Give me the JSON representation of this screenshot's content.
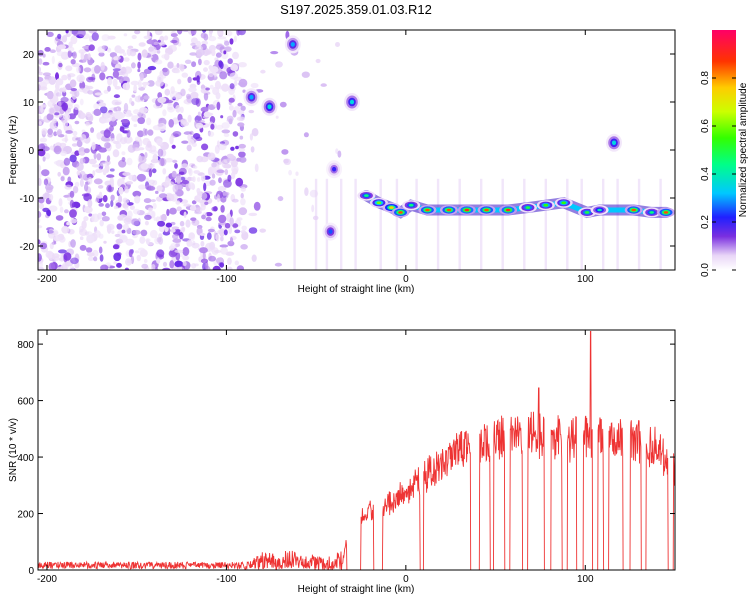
{
  "page_title": "S197.2025.359.01.03.R12",
  "chart_data": [
    {
      "type": "heatmap",
      "title": "S197.2025.359.01.03.R12",
      "xlabel": "Height of straight line (km)",
      "ylabel": "Frequency (Hz)",
      "xlim": [
        -205,
        150
      ],
      "ylim": [
        -25,
        25
      ],
      "x_ticks": [
        -200,
        -100,
        0,
        100
      ],
      "y_ticks": [
        -20,
        -10,
        0,
        10,
        20
      ],
      "colorbar": {
        "label": "Normalized spectral amplitude",
        "range": [
          0,
          1
        ],
        "ticks": [
          "0.0",
          "0.2",
          "0.4",
          "0.6",
          "0.8"
        ],
        "tick_values": [
          0,
          0.2,
          0.4,
          0.6,
          0.8
        ]
      },
      "features": {
        "noise_region": {
          "x": [
            -205,
            -90
          ],
          "y": [
            -25,
            25
          ]
        },
        "carrier_track": [
          {
            "x": -22,
            "y": -9.5,
            "a": 0.45
          },
          {
            "x": -15,
            "y": -11,
            "a": 0.6
          },
          {
            "x": -8,
            "y": -12,
            "a": 0.75
          },
          {
            "x": -3,
            "y": -13,
            "a": 0.85
          },
          {
            "x": 3,
            "y": -11.5,
            "a": 0.45
          },
          {
            "x": 12,
            "y": -12.5,
            "a": 0.85
          },
          {
            "x": 24,
            "y": -12.5,
            "a": 0.85
          },
          {
            "x": 34,
            "y": -12.5,
            "a": 0.9
          },
          {
            "x": 45,
            "y": -12.5,
            "a": 0.85
          },
          {
            "x": 57,
            "y": -12.5,
            "a": 0.9
          },
          {
            "x": 68,
            "y": -12,
            "a": 0.5
          },
          {
            "x": 78,
            "y": -11.5,
            "a": 0.55
          },
          {
            "x": 88,
            "y": -11,
            "a": 0.55
          },
          {
            "x": 101,
            "y": -13,
            "a": 0.5
          },
          {
            "x": 108,
            "y": -12.5,
            "a": 0.4
          },
          {
            "x": 127,
            "y": -12.5,
            "a": 0.85
          },
          {
            "x": 137,
            "y": -13,
            "a": 0.45
          },
          {
            "x": 145,
            "y": -13,
            "a": 0.85
          }
        ],
        "blobs": [
          {
            "x": -86,
            "y": 11,
            "a": 0.3
          },
          {
            "x": -76,
            "y": 9,
            "a": 0.35
          },
          {
            "x": -63,
            "y": 22,
            "a": 0.3
          },
          {
            "x": -30,
            "y": 10,
            "a": 0.35
          },
          {
            "x": -42,
            "y": -17,
            "a": 0.25
          },
          {
            "x": -40,
            "y": -4,
            "a": 0.2
          },
          {
            "x": 116,
            "y": 1.5,
            "a": 0.35
          }
        ]
      }
    },
    {
      "type": "line",
      "xlabel": "Height of straight line (km)",
      "ylabel": "SNR (10 * v/v)",
      "xlim": [
        -205,
        150
      ],
      "ylim": [
        0,
        850
      ],
      "x_ticks": [
        -200,
        -100,
        0,
        100
      ],
      "y_ticks": [
        0,
        200,
        400,
        600,
        800
      ],
      "color": "#ee3333",
      "envelope": [
        {
          "x": -205,
          "y": 15
        },
        {
          "x": -90,
          "y": 15
        },
        {
          "x": -80,
          "y": 45
        },
        {
          "x": -60,
          "y": 50
        },
        {
          "x": -45,
          "y": 30
        },
        {
          "x": -35,
          "y": 50
        },
        {
          "x": -30,
          "y": 200
        },
        {
          "x": -15,
          "y": 230
        },
        {
          "x": 0,
          "y": 300
        },
        {
          "x": 10,
          "y": 350
        },
        {
          "x": 20,
          "y": 390
        },
        {
          "x": 35,
          "y": 470
        },
        {
          "x": 50,
          "y": 490
        },
        {
          "x": 70,
          "y": 510
        },
        {
          "x": 90,
          "y": 490
        },
        {
          "x": 100,
          "y": 510
        },
        {
          "x": 110,
          "y": 500
        },
        {
          "x": 130,
          "y": 490
        },
        {
          "x": 140,
          "y": 460
        },
        {
          "x": 150,
          "y": 380
        }
      ],
      "spikes": [
        {
          "x": 74,
          "y": 645
        },
        {
          "x": 103,
          "y": 845
        }
      ],
      "dropouts": [
        -33,
        -25,
        -18,
        -13,
        8,
        10,
        36,
        41,
        47,
        49,
        55,
        58,
        65,
        68,
        77,
        81,
        87,
        90,
        95,
        99,
        104,
        107,
        110,
        113,
        121,
        125,
        131,
        134,
        146,
        149
      ]
    }
  ]
}
